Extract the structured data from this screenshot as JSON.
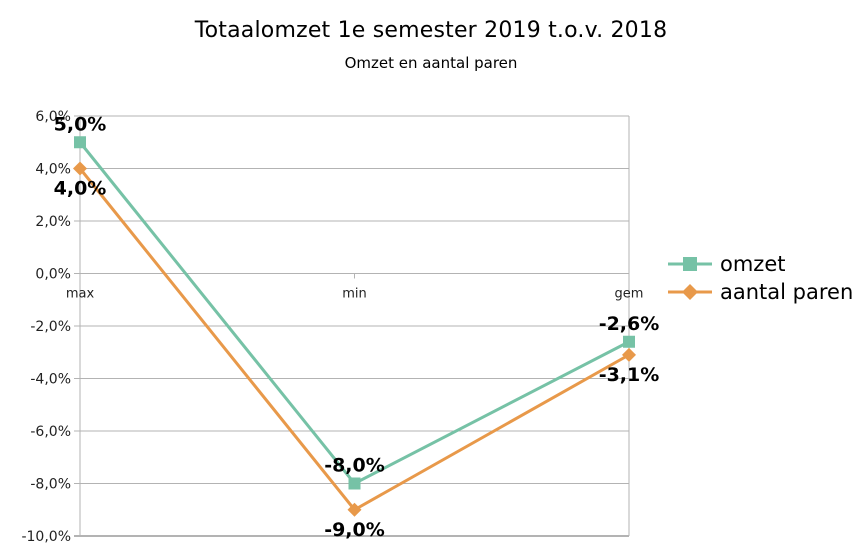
{
  "chart_data": {
    "type": "line",
    "title": "Totaalomzet 1e semester 2019 t.o.v. 2018",
    "subtitle": "Omzet en aantal paren",
    "categories": [
      "max",
      "min",
      "gem"
    ],
    "series": [
      {
        "name": "omzet",
        "values": [
          5.0,
          -8.0,
          -2.6
        ],
        "labels": [
          "5,0%",
          "-8,0%",
          "-2,6%"
        ],
        "color": "#76C2A6",
        "marker": "square"
      },
      {
        "name": "aantal paren",
        "values": [
          4.0,
          -9.0,
          -3.1
        ],
        "labels": [
          "4,0%",
          "-9,0%",
          "-3,1%"
        ],
        "color": "#E8994A",
        "marker": "diamond"
      }
    ],
    "xlabel": "",
    "ylabel": "",
    "ylim": [
      -10,
      6
    ],
    "yticks": [
      "6,0%",
      "4,0%",
      "2,0%",
      "0,0%",
      "-2,0%",
      "-4,0%",
      "-6,0%",
      "-8,0%",
      "-10,0%"
    ],
    "grid": true,
    "legend_position": "right"
  },
  "legend": {
    "items": [
      {
        "label": "omzet"
      },
      {
        "label": "aantal paren"
      }
    ]
  }
}
